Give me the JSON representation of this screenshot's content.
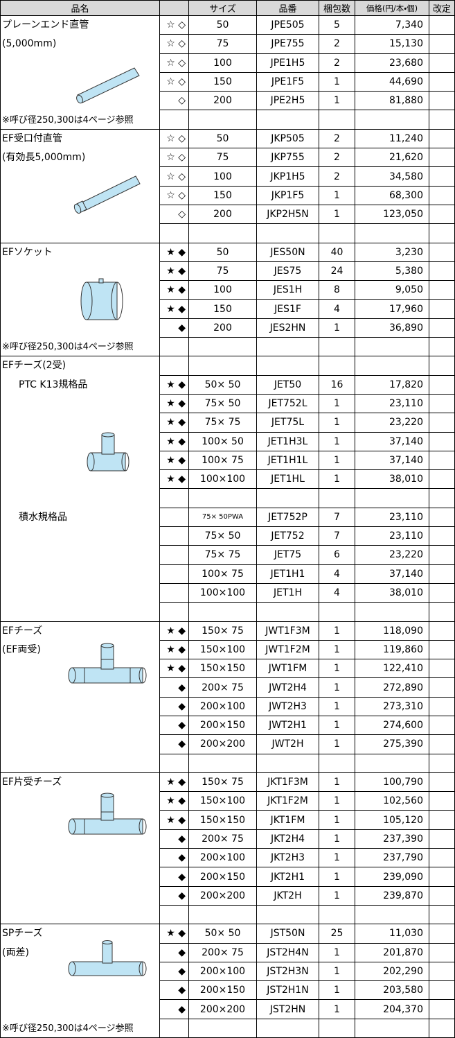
{
  "header": {
    "name": "品名",
    "size": "サイズ",
    "code": "品番",
    "qty": "梱包数",
    "price": "価格(円/本・個)",
    "revision": "改定"
  },
  "sections": [
    {
      "title": "プレーンエンド直管",
      "subtitle": "(5,000mm)",
      "note": "※呼び径250,300は4ページ参照",
      "groups": [
        {
          "rows": [
            [
              "☆ ◇",
              "50",
              "JPE505",
              5,
              "7,340"
            ],
            [
              "☆ ◇",
              "75",
              "JPE755",
              2,
              "15,130"
            ],
            [
              "☆ ◇",
              "100",
              "JPE1H5",
              2,
              "23,680"
            ],
            [
              "☆ ◇",
              "150",
              "JPE1F5",
              1,
              "44,690"
            ],
            [
              "◇",
              "200",
              "JPE2H5",
              1,
              "81,880"
            ]
          ]
        }
      ]
    },
    {
      "title": "EF受口付直管",
      "subtitle": "(有効長5,000mm)",
      "groups": [
        {
          "rows": [
            [
              "☆ ◇",
              "50",
              "JKP505",
              2,
              "11,240"
            ],
            [
              "☆ ◇",
              "75",
              "JKP755",
              2,
              "21,620"
            ],
            [
              "☆ ◇",
              "100",
              "JKP1H5",
              2,
              "34,580"
            ],
            [
              "☆ ◇",
              "150",
              "JKP1F5",
              1,
              "68,300"
            ],
            [
              "◇",
              "200",
              "JKP2H5N",
              1,
              "123,050"
            ]
          ]
        }
      ]
    },
    {
      "title": "EFソケット",
      "note": "※呼び径250,300は4ページ参照",
      "groups": [
        {
          "rows": [
            [
              "★ ◆",
              "50",
              "JES50N",
              40,
              "3,230"
            ],
            [
              "★ ◆",
              "75",
              "JES75",
              24,
              "5,380"
            ],
            [
              "★ ◆",
              "100",
              "JES1H",
              8,
              "9,050"
            ],
            [
              "★ ◆",
              "150",
              "JES1F",
              4,
              "17,960"
            ],
            [
              "◆",
              "200",
              "JES2HN",
              1,
              "36,890"
            ]
          ]
        }
      ]
    },
    {
      "title": "EFチーズ(2受)",
      "groups": [
        {
          "label": "PTC K13規格品",
          "rows": [
            [
              "★ ◆",
              "50× 50",
              "JET50",
              16,
              "17,820"
            ],
            [
              "★ ◆",
              "75× 50",
              "JET752L",
              1,
              "23,110"
            ],
            [
              "★ ◆",
              "75× 75",
              "JET75L",
              1,
              "23,220"
            ],
            [
              "★ ◆",
              "100× 50",
              "JET1H3L",
              1,
              "37,140"
            ],
            [
              "★ ◆",
              "100× 75",
              "JET1H1L",
              1,
              "37,140"
            ],
            [
              "★ ◆",
              "100×100",
              "JET1HL",
              1,
              "38,010"
            ]
          ]
        },
        {
          "label": "積水規格品",
          "rows": [
            [
              null,
              "75× 50PWA",
              "JET752P",
              7,
              "23,110"
            ],
            [
              null,
              "75× 50",
              "JET752",
              7,
              "23,110"
            ],
            [
              null,
              "75× 75",
              "JET75",
              6,
              "23,220"
            ],
            [
              null,
              "100× 75",
              "JET1H1",
              4,
              "37,140"
            ],
            [
              null,
              "100×100",
              "JET1H",
              4,
              "38,010"
            ]
          ]
        }
      ]
    },
    {
      "title": "EFチーズ",
      "subtitle": "(EF両受)",
      "groups": [
        {
          "rows": [
            [
              "★ ◆",
              "150× 75",
              "JWT1F3M",
              1,
              "118,090"
            ],
            [
              "★ ◆",
              "150×100",
              "JWT1F2M",
              1,
              "119,860"
            ],
            [
              "★ ◆",
              "150×150",
              "JWT1FM",
              1,
              "122,410"
            ],
            [
              "◆",
              "200× 75",
              "JWT2H4",
              1,
              "272,890"
            ],
            [
              "◆",
              "200×100",
              "JWT2H3",
              1,
              "273,310"
            ],
            [
              "◆",
              "200×150",
              "JWT2H1",
              1,
              "274,600"
            ],
            [
              "◆",
              "200×200",
              "JWT2H",
              1,
              "275,390"
            ]
          ]
        }
      ]
    },
    {
      "title": "EF片受チーズ",
      "groups": [
        {
          "rows": [
            [
              "★ ◆",
              "150× 75",
              "JKT1F3M",
              1,
              "100,790"
            ],
            [
              "★ ◆",
              "150×100",
              "JKT1F2M",
              1,
              "102,560"
            ],
            [
              "★ ◆",
              "150×150",
              "JKT1FM",
              1,
              "105,120"
            ],
            [
              "◆",
              "200× 75",
              "JKT2H4",
              1,
              "237,390"
            ],
            [
              "◆",
              "200×100",
              "JKT2H3",
              1,
              "237,790"
            ],
            [
              "◆",
              "200×150",
              "JKT2H1",
              1,
              "239,090"
            ],
            [
              "◆",
              "200×200",
              "JKT2H",
              1,
              "239,870"
            ]
          ]
        }
      ]
    },
    {
      "title": "SPチーズ",
      "subtitle": "(両差)",
      "note": "※呼び径250,300は4ページ参照",
      "groups": [
        {
          "rows": [
            [
              "★ ◆",
              "50× 50",
              "JST50N",
              25,
              "11,030"
            ],
            [
              "◆",
              "200× 75",
              "JST2H4N",
              1,
              "201,870"
            ],
            [
              "◆",
              "200×100",
              "JST2H3N",
              1,
              "202,290"
            ],
            [
              "◆",
              "200×150",
              "JST2H1N",
              1,
              "203,580"
            ],
            [
              "◆",
              "200×200",
              "JST2HN",
              1,
              "204,370"
            ]
          ]
        }
      ]
    }
  ]
}
